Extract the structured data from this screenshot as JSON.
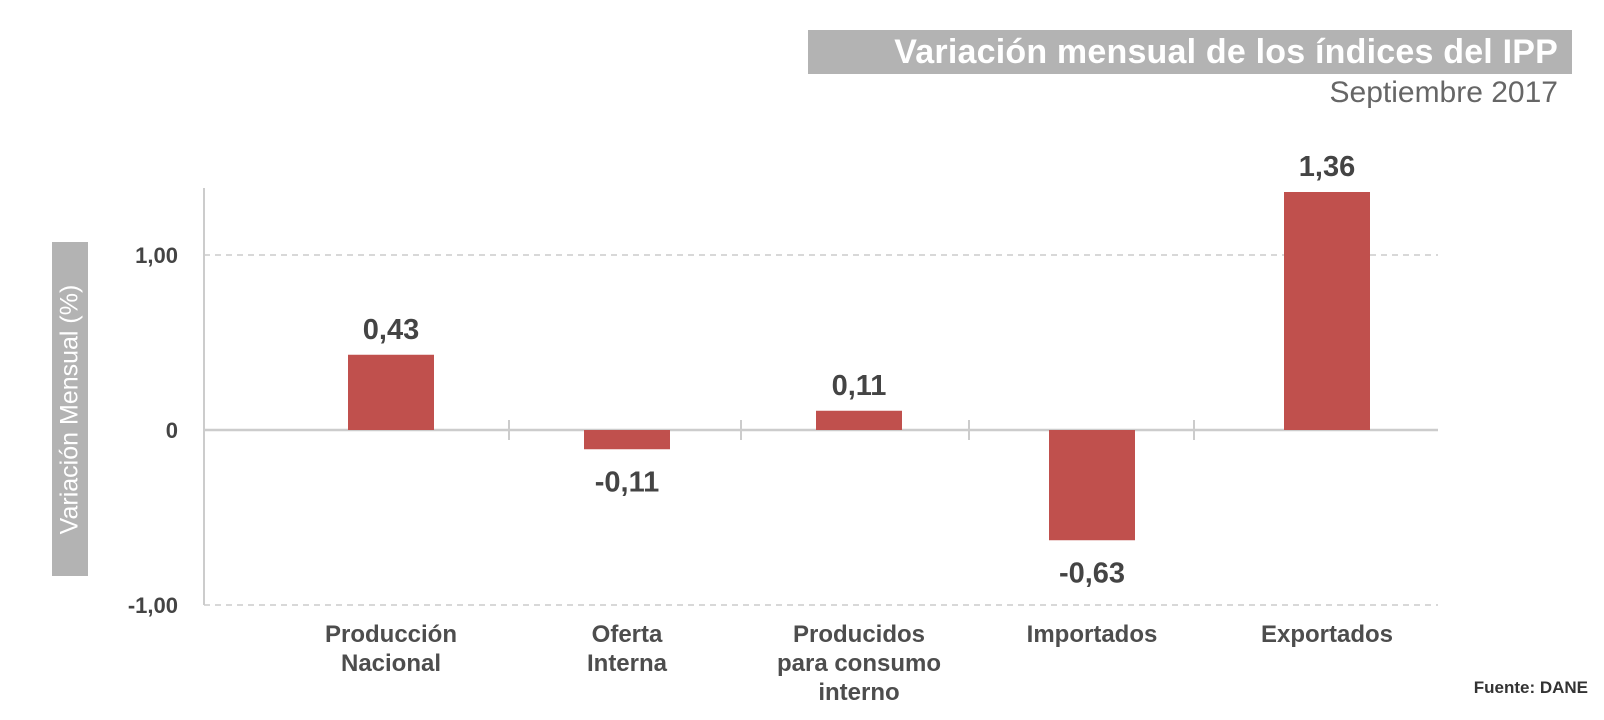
{
  "chart_data": {
    "type": "bar",
    "title": "Variación mensual de los índices del IPP",
    "subtitle": "Septiembre 2017",
    "ylabel": "Variación Mensual (%)",
    "xlabel": "",
    "categories": [
      [
        "Producción",
        "Nacional"
      ],
      [
        "Oferta",
        "Interna"
      ],
      [
        "Producidos",
        "para consumo",
        "interno"
      ],
      [
        "Importados"
      ],
      [
        "Exportados"
      ]
    ],
    "values": [
      0.43,
      -0.11,
      0.11,
      -0.63,
      1.36
    ],
    "value_labels": [
      "0,43",
      "-0,11",
      "0,11",
      "-0,63",
      "1,36"
    ],
    "ylim": [
      -1.0,
      1.36
    ],
    "yticks": [
      {
        "value": 1.0,
        "label": "1,00"
      },
      {
        "value": 0,
        "label": "0"
      },
      {
        "value": -1.0,
        "label": "-1,00"
      }
    ],
    "grid": true,
    "bar_color": "#c0504d",
    "source": "Fuente: DANE"
  }
}
